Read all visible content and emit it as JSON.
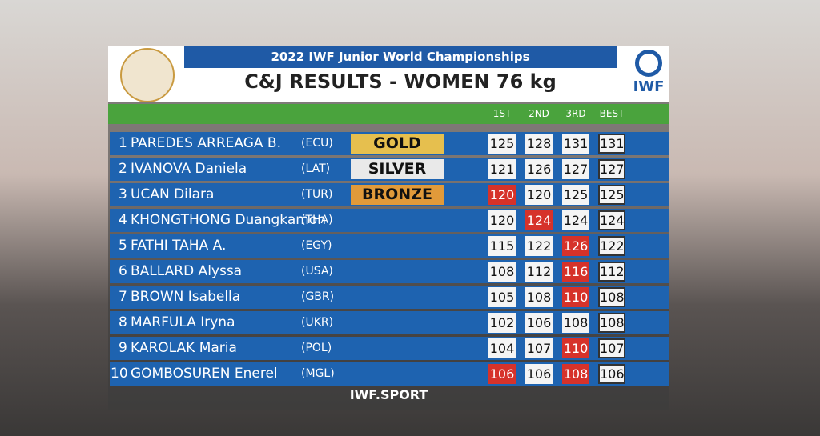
{
  "header": {
    "event": "2022 IWF Junior World Championships",
    "title": "C&J RESULTS - WOMEN 76 kg",
    "logo": "IWF"
  },
  "columns": [
    "1ST",
    "2ND",
    "3RD",
    "BEST"
  ],
  "rows": [
    {
      "rank": "1",
      "name": "PAREDES ARREAGA B.",
      "nation": "(ECU)",
      "medal": "GOLD",
      "attempts": [
        {
          "value": 125,
          "failed": false
        },
        {
          "value": 128,
          "failed": false
        },
        {
          "value": 131,
          "failed": false
        }
      ],
      "best": 131
    },
    {
      "rank": "2",
      "name": "IVANOVA Daniela",
      "nation": "(LAT)",
      "medal": "SILVER",
      "attempts": [
        {
          "value": 121,
          "failed": false
        },
        {
          "value": 126,
          "failed": false
        },
        {
          "value": 127,
          "failed": false
        }
      ],
      "best": 127
    },
    {
      "rank": "3",
      "name": "UCAN Dilara",
      "nation": "(TUR)",
      "medal": "BRONZE",
      "attempts": [
        {
          "value": 120,
          "failed": true
        },
        {
          "value": 120,
          "failed": false
        },
        {
          "value": 125,
          "failed": false
        }
      ],
      "best": 125
    },
    {
      "rank": "4",
      "name": "KHONGTHONG Duangkamon",
      "nation": "(THA)",
      "attempts": [
        {
          "value": 120,
          "failed": false
        },
        {
          "value": 124,
          "failed": true
        },
        {
          "value": 124,
          "failed": false
        }
      ],
      "best": 124
    },
    {
      "rank": "5",
      "name": "FATHI TAHA A.",
      "nation": "(EGY)",
      "attempts": [
        {
          "value": 115,
          "failed": false
        },
        {
          "value": 122,
          "failed": false
        },
        {
          "value": 126,
          "failed": true
        }
      ],
      "best": 122
    },
    {
      "rank": "6",
      "name": "BALLARD Alyssa",
      "nation": "(USA)",
      "attempts": [
        {
          "value": 108,
          "failed": false
        },
        {
          "value": 112,
          "failed": false
        },
        {
          "value": 116,
          "failed": true
        }
      ],
      "best": 112
    },
    {
      "rank": "7",
      "name": "BROWN Isabella",
      "nation": "(GBR)",
      "attempts": [
        {
          "value": 105,
          "failed": false
        },
        {
          "value": 108,
          "failed": false
        },
        {
          "value": 110,
          "failed": true
        }
      ],
      "best": 108
    },
    {
      "rank": "8",
      "name": "MARFULA Iryna",
      "nation": "(UKR)",
      "attempts": [
        {
          "value": 102,
          "failed": false
        },
        {
          "value": 106,
          "failed": false
        },
        {
          "value": 108,
          "failed": false
        }
      ],
      "best": 108
    },
    {
      "rank": "9",
      "name": "KAROLAK Maria",
      "nation": "(POL)",
      "attempts": [
        {
          "value": 104,
          "failed": false
        },
        {
          "value": 107,
          "failed": false
        },
        {
          "value": 110,
          "failed": true
        }
      ],
      "best": 107
    },
    {
      "rank": "10",
      "name": "GOMBOSUREN Enerel",
      "nation": "(MGL)",
      "attempts": [
        {
          "value": 106,
          "failed": true
        },
        {
          "value": 106,
          "failed": false
        },
        {
          "value": 108,
          "failed": true
        }
      ],
      "best": 106
    }
  ],
  "footer": "IWF.SPORT",
  "medal_colors": {
    "GOLD": "#e6bf4e",
    "SILVER": "#e9e9e9",
    "BRONZE": "#e19a3a"
  }
}
